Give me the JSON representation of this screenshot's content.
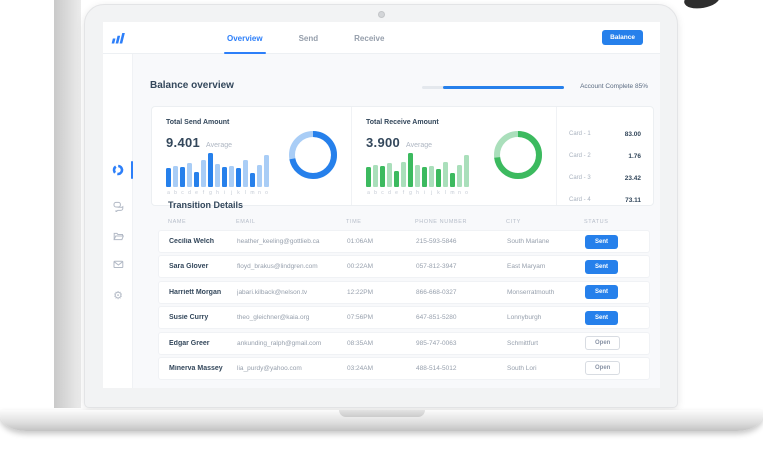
{
  "nav": {
    "tabs": [
      {
        "label": "Overview",
        "active": true
      },
      {
        "label": "Send",
        "active": false
      },
      {
        "label": "Receive",
        "active": false
      }
    ],
    "balance_button": "Balance"
  },
  "sidebar": {
    "icons": [
      {
        "name": "dashboard-icon",
        "active": true
      },
      {
        "name": "chat-icon",
        "active": false
      },
      {
        "name": "folder-icon",
        "active": false
      },
      {
        "name": "mail-icon",
        "active": false
      },
      {
        "name": "settings-icon",
        "active": false
      }
    ]
  },
  "overview": {
    "title": "Balance overview",
    "account_complete_label": "Account Complete 85%",
    "account_complete_pct": 85
  },
  "colors": {
    "accent_blue": "#2680eb",
    "accent_blue_light": "#a9cdf6",
    "accent_green": "#3cba5f",
    "accent_green_light": "#aadfbb"
  },
  "chart_data": [
    {
      "type": "bar",
      "title": "Total Send Amount",
      "categories": [
        "a",
        "b",
        "c",
        "d",
        "e",
        "f",
        "g",
        "h",
        "i",
        "j",
        "k",
        "l",
        "m",
        "n",
        "o"
      ],
      "values": [
        55,
        62,
        60,
        72,
        45,
        78,
        100,
        68,
        60,
        62,
        55,
        78,
        42,
        65,
        95
      ],
      "shades": [
        "d",
        "l",
        "d",
        "l",
        "d",
        "l",
        "d",
        "l",
        "d",
        "l",
        "d",
        "l",
        "d",
        "l",
        "l"
      ],
      "big_value": "9.401",
      "value_label": "Average",
      "color_dark": "#2680eb",
      "color_light": "#a9cdf6",
      "donut_pct": 72
    },
    {
      "type": "bar",
      "title": "Total Receive Amount",
      "categories": [
        "a",
        "b",
        "c",
        "d",
        "e",
        "f",
        "g",
        "h",
        "i",
        "j",
        "k",
        "l",
        "m",
        "n",
        "o"
      ],
      "values": [
        58,
        64,
        62,
        70,
        48,
        74,
        100,
        66,
        58,
        62,
        54,
        74,
        42,
        66,
        95
      ],
      "shades": [
        "d",
        "l",
        "d",
        "l",
        "d",
        "l",
        "d",
        "l",
        "d",
        "l",
        "d",
        "l",
        "d",
        "l",
        "l"
      ],
      "big_value": "3.900",
      "value_label": "Average",
      "color_dark": "#3cba5f",
      "color_light": "#aadfbb",
      "donut_pct": 73
    }
  ],
  "card_list": [
    {
      "label": "Card - 1",
      "value": "83.00"
    },
    {
      "label": "Card - 2",
      "value": "1.76"
    },
    {
      "label": "Card - 3",
      "value": "23.42"
    },
    {
      "label": "Card - 4",
      "value": "73.11"
    }
  ],
  "table": {
    "title": "Transition Details",
    "columns": [
      "NAME",
      "EMAIL",
      "TIME",
      "PHONE NUMBER",
      "CITY",
      "STATUS"
    ],
    "rows": [
      {
        "name": "Cecilia Welch",
        "email": "heather_keeling@gottlieb.ca",
        "time": "01:06AM",
        "phone": "215-593-5846",
        "city": "South Marlane",
        "status": "Sent"
      },
      {
        "name": "Sara Glover",
        "email": "floyd_brakus@lindgren.com",
        "time": "00:22AM",
        "phone": "057-812-3947",
        "city": "East Maryam",
        "status": "Sent"
      },
      {
        "name": "Harriett Morgan",
        "email": "jabari.kilback@nelson.tv",
        "time": "12:22PM",
        "phone": "866-668-0327",
        "city": "Monserratmouth",
        "status": "Sent"
      },
      {
        "name": "Susie Curry",
        "email": "theo_gleichner@kaia.org",
        "time": "07:56PM",
        "phone": "647-851-5280",
        "city": "Lonnyburgh",
        "status": "Sent"
      },
      {
        "name": "Edgar Greer",
        "email": "ankunding_ralph@gmail.com",
        "time": "08:35AM",
        "phone": "985-747-0063",
        "city": "Schmittfurt",
        "status": "Open"
      },
      {
        "name": "Minerva Massey",
        "email": "lia_purdy@yahoo.com",
        "time": "03:24AM",
        "phone": "488-514-5012",
        "city": "South Lori",
        "status": "Open"
      }
    ]
  }
}
